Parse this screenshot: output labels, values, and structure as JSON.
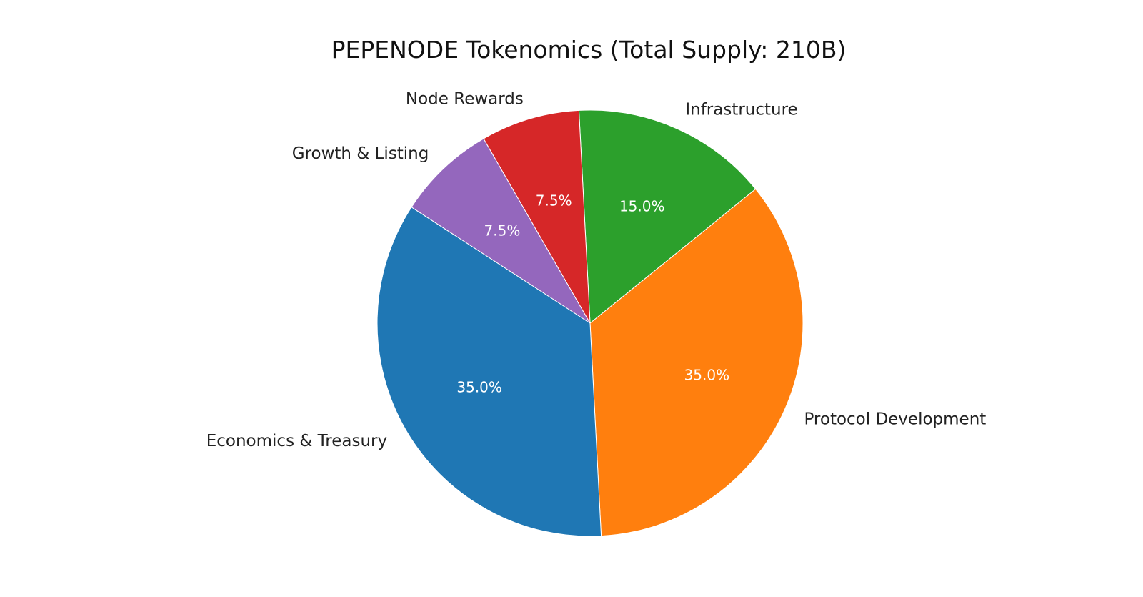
{
  "chart_data": {
    "type": "pie",
    "title": "PEPENODE Tokenomics (Total Supply: 210B)",
    "slices": [
      {
        "label": "Infrastructure",
        "value": 15.0,
        "pct_label": "15.0%",
        "color": "#2ca02c"
      },
      {
        "label": "Protocol Development",
        "value": 35.0,
        "pct_label": "35.0%",
        "color": "#ff7f0e"
      },
      {
        "label": "Economics & Treasury",
        "value": 35.0,
        "pct_label": "35.0%",
        "color": "#1f77b4"
      },
      {
        "label": "Growth & Listing",
        "value": 7.5,
        "pct_label": "7.5%",
        "color": "#9467bd"
      },
      {
        "label": "Node Rewards",
        "value": 7.5,
        "pct_label": "7.5%",
        "color": "#d62728"
      }
    ],
    "legend": "none"
  }
}
